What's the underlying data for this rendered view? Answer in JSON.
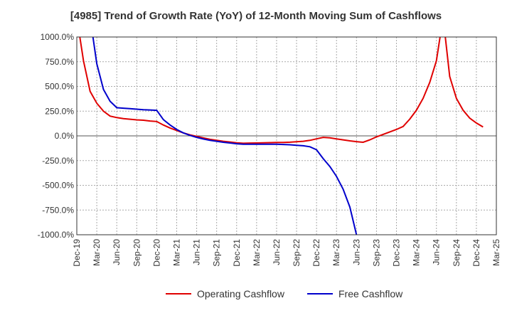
{
  "chart_data": {
    "type": "line",
    "title": "[4985]  Trend of Growth Rate (YoY) of 12-Month Moving Sum of Cashflows",
    "xlabel": "",
    "ylabel": "",
    "x_ticks": [
      "Dec-19",
      "Mar-20",
      "Jun-20",
      "Sep-20",
      "Dec-20",
      "Mar-21",
      "Jun-21",
      "Sep-21",
      "Dec-21",
      "Mar-22",
      "Jun-22",
      "Sep-22",
      "Dec-22",
      "Mar-23",
      "Jun-23",
      "Sep-23",
      "Dec-23",
      "Mar-24",
      "Jun-24",
      "Sep-24",
      "Dec-24",
      "Mar-25"
    ],
    "y_ticks": [
      "1000.0%",
      "750.0%",
      "500.0%",
      "250.0%",
      "0.0%",
      "-250.0%",
      "-500.0%",
      "-750.0%",
      "-1000.0%"
    ],
    "y_tick_values": [
      1000,
      750,
      500,
      250,
      0,
      -250,
      -500,
      -750,
      -1000
    ],
    "ylim": [
      -1000,
      1000
    ],
    "x_range_months": [
      0,
      63
    ],
    "grid": true,
    "legend_position": "bottom-center",
    "series": [
      {
        "name": "Operating Cashflow",
        "color": "#e00000",
        "points": [
          [
            0,
            1200
          ],
          [
            1,
            760
          ],
          [
            2,
            450
          ],
          [
            3,
            330
          ],
          [
            4,
            250
          ],
          [
            5,
            200
          ],
          [
            6,
            185
          ],
          [
            7,
            175
          ],
          [
            8,
            168
          ],
          [
            9,
            162
          ],
          [
            10,
            158
          ],
          [
            11,
            150
          ],
          [
            12,
            145
          ],
          [
            13,
            110
          ],
          [
            14,
            80
          ],
          [
            15,
            55
          ],
          [
            16,
            30
          ],
          [
            17,
            10
          ],
          [
            18,
            -5
          ],
          [
            19,
            -20
          ],
          [
            20,
            -35
          ],
          [
            21,
            -45
          ],
          [
            22,
            -55
          ],
          [
            23,
            -62
          ],
          [
            24,
            -70
          ],
          [
            25,
            -75
          ],
          [
            26,
            -73
          ],
          [
            27,
            -72
          ],
          [
            28,
            -70
          ],
          [
            29,
            -68
          ],
          [
            30,
            -67
          ],
          [
            31,
            -66
          ],
          [
            32,
            -64
          ],
          [
            33,
            -60
          ],
          [
            34,
            -55
          ],
          [
            35,
            -45
          ],
          [
            36,
            -30
          ],
          [
            37,
            -15
          ],
          [
            38,
            -20
          ],
          [
            39,
            -30
          ],
          [
            40,
            -40
          ],
          [
            41,
            -50
          ],
          [
            42,
            -58
          ],
          [
            43,
            -65
          ],
          [
            44,
            -40
          ],
          [
            45,
            -10
          ],
          [
            46,
            15
          ],
          [
            47,
            40
          ],
          [
            48,
            65
          ],
          [
            49,
            95
          ],
          [
            50,
            170
          ],
          [
            51,
            260
          ],
          [
            52,
            380
          ],
          [
            53,
            540
          ],
          [
            54,
            760
          ],
          [
            55,
            1200
          ],
          [
            56,
            600
          ],
          [
            57,
            380
          ],
          [
            58,
            260
          ],
          [
            59,
            180
          ],
          [
            60,
            130
          ],
          [
            61,
            90
          ]
        ]
      },
      {
        "name": "Free Cashflow",
        "color": "#0000cc",
        "points": [
          [
            2,
            1200
          ],
          [
            3,
            730
          ],
          [
            4,
            470
          ],
          [
            5,
            350
          ],
          [
            6,
            285
          ],
          [
            7,
            280
          ],
          [
            8,
            275
          ],
          [
            9,
            270
          ],
          [
            10,
            265
          ],
          [
            11,
            262
          ],
          [
            12,
            258
          ],
          [
            13,
            165
          ],
          [
            14,
            110
          ],
          [
            15,
            65
          ],
          [
            16,
            30
          ],
          [
            17,
            5
          ],
          [
            18,
            -15
          ],
          [
            19,
            -32
          ],
          [
            20,
            -45
          ],
          [
            21,
            -55
          ],
          [
            22,
            -65
          ],
          [
            23,
            -72
          ],
          [
            24,
            -80
          ],
          [
            25,
            -85
          ],
          [
            26,
            -85
          ],
          [
            27,
            -85
          ],
          [
            28,
            -85
          ],
          [
            29,
            -85
          ],
          [
            30,
            -85
          ],
          [
            31,
            -87
          ],
          [
            32,
            -90
          ],
          [
            33,
            -95
          ],
          [
            34,
            -100
          ],
          [
            35,
            -110
          ],
          [
            36,
            -140
          ],
          [
            37,
            -230
          ],
          [
            38,
            -310
          ],
          [
            39,
            -410
          ],
          [
            40,
            -540
          ],
          [
            41,
            -720
          ],
          [
            42,
            -1000
          ]
        ]
      }
    ]
  }
}
